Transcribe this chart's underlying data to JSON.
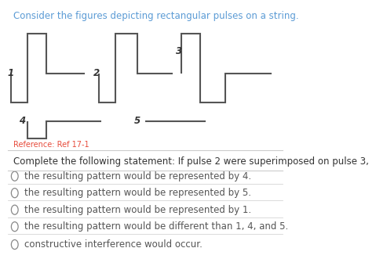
{
  "title": "Consider the figures depicting rectangular pulses on a string.",
  "title_color": "#5b9bd5",
  "title_fontsize": 8.5,
  "reference_text": "Reference: Ref 17-1",
  "reference_color": "#e74c3c",
  "reference_fontsize": 7,
  "question_text": "Complete the following statement: If pulse 2 were superimposed on pulse 3,",
  "question_fontsize": 8.5,
  "question_color": "#333333",
  "options": [
    "the resulting pattern would be represented by 4.",
    "the resulting pattern would be represented by 5.",
    "the resulting pattern would be represented by 1.",
    "the resulting pattern would be different than 1, 4, and 5.",
    "constructive interference would occur."
  ],
  "options_fontsize": 8.5,
  "options_color": "#555555",
  "line_color": "#555555",
  "line_width": 1.5,
  "bg_color": "#ffffff",
  "separator_color": "#cccccc"
}
